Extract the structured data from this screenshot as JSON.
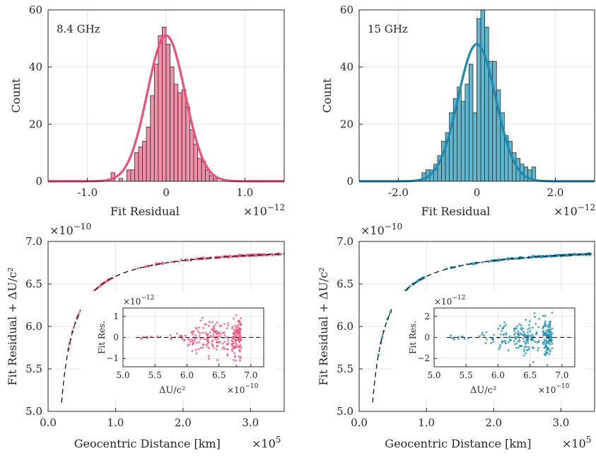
{
  "figure": {
    "rows": 2,
    "cols": 2
  },
  "chart_data": [
    {
      "id": "hist-8-4",
      "type": "bar",
      "annotation": "8.4 GHz",
      "xlabel": "Fit Residual",
      "ylabel": "Count",
      "x_scale_label": "×10",
      "x_scale_exp": "−12",
      "xlim": [
        -1.5,
        1.5
      ],
      "ylim": [
        0,
        60
      ],
      "xticks": [
        -1.0,
        0,
        1.0
      ],
      "xtick_labels": [
        "-1.0",
        "0",
        "1.0"
      ],
      "yticks": [
        0,
        20,
        40,
        60
      ],
      "ytick_labels": [
        "0",
        "20",
        "40",
        "60"
      ],
      "bin_edges": [
        -0.7,
        -0.65,
        -0.6,
        -0.55,
        -0.5,
        -0.45,
        -0.4,
        -0.35,
        -0.3,
        -0.25,
        -0.2,
        -0.15,
        -0.1,
        -0.05,
        0.0,
        0.05,
        0.1,
        0.15,
        0.2,
        0.25,
        0.3,
        0.35,
        0.4,
        0.45,
        0.5,
        0.55,
        0.6,
        0.65
      ],
      "counts": [
        3,
        0,
        1,
        0,
        4,
        4,
        10,
        12,
        14,
        19,
        30,
        41,
        51,
        54,
        48,
        40,
        34,
        31,
        32,
        26,
        18,
        13,
        8,
        7,
        4,
        2,
        1
      ],
      "fit_curve": {
        "type": "gaussian",
        "amplitude": 51,
        "mean": 0.0,
        "sigma": 0.24
      },
      "color": "#ee4f78",
      "bar_color": "#f28fa8"
    },
    {
      "id": "hist-15",
      "type": "bar",
      "annotation": "15 GHz",
      "xlabel": "Fit Residual",
      "ylabel": "Count",
      "x_scale_label": "×10",
      "x_scale_exp": "−12",
      "xlim": [
        -3.0,
        3.0
      ],
      "ylim": [
        0,
        60
      ],
      "xticks": [
        -2.0,
        0,
        2.0
      ],
      "xtick_labels": [
        "-2.0",
        "0",
        "2.0"
      ],
      "yticks": [
        0,
        20,
        40,
        60
      ],
      "ytick_labels": [
        "0",
        "20",
        "40",
        "60"
      ],
      "bin_edges": [
        -1.4,
        -1.3,
        -1.2,
        -1.1,
        -1.0,
        -0.9,
        -0.8,
        -0.7,
        -0.6,
        -0.5,
        -0.4,
        -0.3,
        -0.2,
        -0.1,
        0.0,
        0.1,
        0.2,
        0.3,
        0.4,
        0.5,
        0.6,
        0.7,
        0.8,
        0.9,
        1.0,
        1.1,
        1.2,
        1.3,
        1.4,
        1.5
      ],
      "counts": [
        3,
        4,
        4,
        6,
        9,
        14,
        17,
        24,
        29,
        33,
        28,
        34,
        41,
        24,
        57,
        60,
        54,
        42,
        42,
        32,
        24,
        16,
        14,
        10,
        8,
        6,
        5,
        4,
        5
      ],
      "fit_curve": {
        "type": "gaussian",
        "amplitude": 48,
        "mean": 0.0,
        "sigma": 0.48
      },
      "color": "#1b8bb0",
      "bar_color": "#5fb6cf"
    },
    {
      "id": "scatter-8-4",
      "type": "scatter",
      "xlabel": "Geocentric Distance [km]",
      "x_scale_label": "×10",
      "x_scale_exp": "5",
      "ylabel": "Fit Residual + ΔU/c²",
      "y_scale_label": "×10",
      "y_scale_exp": "−10",
      "xlim": [
        0.0,
        3.5
      ],
      "ylim": [
        5.0,
        7.0
      ],
      "xticks": [
        0.0,
        1.0,
        2.0,
        3.0
      ],
      "xtick_labels": [
        "0.0",
        "1.0",
        "2.0",
        "3.0"
      ],
      "yticks": [
        5.0,
        5.5,
        6.0,
        6.5,
        7.0
      ],
      "ytick_labels": [
        "5.0",
        "5.5",
        "6.0",
        "6.5",
        "7.0"
      ],
      "model": {
        "type": "potential",
        "a": 6.96,
        "b": 0.371
      },
      "color": "#ee4f78",
      "inset": {
        "xlabel": "ΔU/c²",
        "x_scale_label": "×10",
        "x_scale_exp": "−10",
        "ylabel": "Fit Res.",
        "y_scale_label": "×10",
        "y_scale_exp": "−12",
        "xlim": [
          5.0,
          7.2
        ],
        "ylim": [
          -1.4,
          1.4
        ],
        "xticks": [
          5.0,
          5.5,
          6.0,
          6.5,
          7.0
        ],
        "xtick_labels": [
          "5.0",
          "5.5",
          "6.0",
          "6.5",
          "7.0"
        ],
        "yticks": [
          -1,
          0,
          1
        ],
        "ytick_labels": [
          "−1",
          "0",
          "1"
        ]
      }
    },
    {
      "id": "scatter-15",
      "type": "scatter",
      "xlabel": "Geocentric Distance [km]",
      "x_scale_label": "×10",
      "x_scale_exp": "5",
      "ylabel": "Fit Residual + ΔU/c²",
      "y_scale_label": "×10",
      "y_scale_exp": "−10",
      "xlim": [
        0.0,
        3.5
      ],
      "ylim": [
        5.0,
        7.0
      ],
      "xticks": [
        0.0,
        1.0,
        2.0,
        3.0
      ],
      "xtick_labels": [
        "0.0",
        "1.0",
        "2.0",
        "3.0"
      ],
      "yticks": [
        5.0,
        5.5,
        6.0,
        6.5,
        7.0
      ],
      "ytick_labels": [
        "5.0",
        "5.5",
        "6.0",
        "6.5",
        "7.0"
      ],
      "model": {
        "type": "potential",
        "a": 6.96,
        "b": 0.371
      },
      "color": "#1b8bb0",
      "inset": {
        "xlabel": "ΔU/c²",
        "x_scale_label": "×10",
        "x_scale_exp": "−10",
        "ylabel": "Fit Res.",
        "y_scale_label": "×10",
        "y_scale_exp": "−12",
        "xlim": [
          5.0,
          7.2
        ],
        "ylim": [
          -2.8,
          2.8
        ],
        "xticks": [
          5.0,
          5.5,
          6.0,
          6.5,
          7.0
        ],
        "xtick_labels": [
          "5.0",
          "5.5",
          "6.0",
          "6.5",
          "7.0"
        ],
        "yticks": [
          -2,
          0,
          2
        ],
        "ytick_labels": [
          "−2",
          "0",
          "2"
        ]
      }
    }
  ]
}
